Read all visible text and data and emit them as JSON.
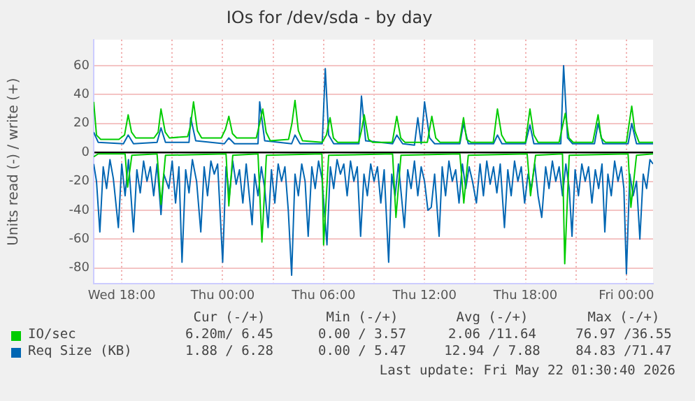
{
  "chart_data": {
    "type": "line",
    "title": "IOs for /dev/sda - by day",
    "ylabel": "Units read (-) / write (+)",
    "xlim": [
      "2026-05-20T16:20",
      "2026-05-22T01:35"
    ],
    "ylim": [
      -91,
      78
    ],
    "xticks": [
      {
        "value": "2026-05-20T18:00",
        "label": "Wed 18:00"
      },
      {
        "value": "2026-05-20T21:00",
        "label": null
      },
      {
        "value": "2026-05-21T00:00",
        "label": "Thu 00:00"
      },
      {
        "value": "2026-05-21T03:00",
        "label": null
      },
      {
        "value": "2026-05-21T06:00",
        "label": "Thu 06:00"
      },
      {
        "value": "2026-05-21T09:00",
        "label": null
      },
      {
        "value": "2026-05-21T12:00",
        "label": "Thu 12:00"
      },
      {
        "value": "2026-05-21T15:00",
        "label": null
      },
      {
        "value": "2026-05-21T18:00",
        "label": "Thu 18:00"
      },
      {
        "value": "2026-05-21T21:00",
        "label": null
      },
      {
        "value": "2026-05-22T00:00",
        "label": "Fri 00:00"
      }
    ],
    "yticks": [
      -80,
      -60,
      -40,
      -20,
      0,
      20,
      40,
      60
    ],
    "grid": true,
    "legend": "bottom",
    "marker": "none",
    "line_style": "solid",
    "series": [
      {
        "name": "IO/sec",
        "color": "#00cc00",
        "x": [
          "2026-05-20T16:20",
          "2026-05-20T16:30",
          "2026-05-20T16:45",
          "2026-05-20T17:50",
          "2026-05-20T18:10",
          "2026-05-20T18:23",
          "2026-05-20T18:35",
          "2026-05-20T18:50",
          "2026-05-20T19:55",
          "2026-05-20T20:10",
          "2026-05-20T20:20",
          "2026-05-20T20:35",
          "2026-05-20T20:50",
          "2026-05-20T21:55",
          "2026-05-20T22:05",
          "2026-05-20T22:16",
          "2026-05-20T22:30",
          "2026-05-20T22:45",
          "2026-05-20T23:55",
          "2026-05-21T00:10",
          "2026-05-21T00:22",
          "2026-05-21T00:35",
          "2026-05-21T00:50",
          "2026-05-21T02:00",
          "2026-05-21T02:12",
          "2026-05-21T02:23",
          "2026-05-21T02:35",
          "2026-05-21T02:50",
          "2026-05-21T03:55",
          "2026-05-21T04:07",
          "2026-05-21T04:18",
          "2026-05-21T04:30",
          "2026-05-21T04:45",
          "2026-05-21T05:55",
          "2026-05-21T06:10",
          "2026-05-21T06:23",
          "2026-05-21T06:35",
          "2026-05-21T06:50",
          "2026-05-21T08:05",
          "2026-05-21T08:15",
          "2026-05-21T08:25",
          "2026-05-21T08:40",
          "2026-05-21T08:55",
          "2026-05-21T10:05",
          "2026-05-21T10:21",
          "2026-05-21T10:35",
          "2026-05-21T10:50",
          "2026-05-21T12:10",
          "2026-05-21T12:26",
          "2026-05-21T12:40",
          "2026-05-21T12:55",
          "2026-05-21T14:05",
          "2026-05-21T14:19",
          "2026-05-21T14:30",
          "2026-05-21T14:45",
          "2026-05-21T16:05",
          "2026-05-21T16:20",
          "2026-05-21T16:35",
          "2026-05-21T16:50",
          "2026-05-21T18:00",
          "2026-05-21T18:16",
          "2026-05-21T18:30",
          "2026-05-21T18:45",
          "2026-05-21T20:00",
          "2026-05-21T20:22",
          "2026-05-21T20:35",
          "2026-05-21T20:50",
          "2026-05-21T22:00",
          "2026-05-21T22:19",
          "2026-05-21T22:30",
          "2026-05-21T22:45",
          "2026-05-22T00:00",
          "2026-05-22T00:19",
          "2026-05-22T00:30",
          "2026-05-22T00:45",
          "2026-05-22T01:35"
        ],
        "values": [
          35,
          12,
          9,
          9,
          12,
          26,
          14,
          10,
          10,
          14,
          30,
          14,
          10,
          11,
          18,
          35,
          15,
          10,
          10,
          16,
          25,
          13,
          10,
          10,
          20,
          30,
          14,
          8,
          9,
          20,
          36,
          15,
          8,
          7,
          12,
          24,
          10,
          7,
          7,
          15,
          26,
          9,
          7,
          7,
          25,
          10,
          7,
          7,
          25,
          10,
          7,
          7,
          24,
          9,
          7,
          7,
          30,
          12,
          7,
          7,
          30,
          12,
          7,
          7,
          27,
          10,
          7,
          7,
          26,
          10,
          7,
          7,
          32,
          15,
          7,
          7
        ]
      },
      {
        "name": "Req Size (KB)",
        "color": "#0066b3",
        "x": [
          "2026-05-20T16:20",
          "2026-05-20T16:36",
          "2026-05-20T18:06",
          "2026-05-20T18:23",
          "2026-05-20T18:42",
          "2026-05-20T20:06",
          "2026-05-20T20:20",
          "2026-05-20T20:36",
          "2026-05-20T22:00",
          "2026-05-20T22:06",
          "2026-05-20T22:24",
          "2026-05-21T00:06",
          "2026-05-21T00:22",
          "2026-05-21T00:42",
          "2026-05-21T02:06",
          "2026-05-21T02:12",
          "2026-05-21T02:30",
          "2026-05-21T04:06",
          "2026-05-21T04:18",
          "2026-05-21T04:36",
          "2026-05-21T05:55",
          "2026-05-21T06:06",
          "2026-05-21T06:18",
          "2026-05-21T06:36",
          "2026-05-21T08:06",
          "2026-05-21T08:15",
          "2026-05-21T08:30",
          "2026-05-21T10:06",
          "2026-05-21T10:21",
          "2026-05-21T10:42",
          "2026-05-21T11:24",
          "2026-05-21T11:36",
          "2026-05-21T11:48",
          "2026-05-21T12:00",
          "2026-05-21T12:18",
          "2026-05-21T12:36",
          "2026-05-21T14:06",
          "2026-05-21T14:19",
          "2026-05-21T14:36",
          "2026-05-21T16:06",
          "2026-05-21T16:20",
          "2026-05-21T16:36",
          "2026-05-21T18:00",
          "2026-05-21T18:16",
          "2026-05-21T18:30",
          "2026-05-21T20:06",
          "2026-05-21T20:16",
          "2026-05-21T20:30",
          "2026-05-21T20:48",
          "2026-05-21T22:06",
          "2026-05-21T22:19",
          "2026-05-21T22:36",
          "2026-05-22T00:06",
          "2026-05-22T00:19",
          "2026-05-22T00:36",
          "2026-05-22T01:35"
        ],
        "values": [
          14,
          7,
          6,
          12,
          6,
          7,
          17,
          7,
          7,
          24,
          8,
          6,
          10,
          6,
          6,
          35,
          8,
          6,
          12,
          6,
          6,
          58,
          12,
          6,
          6,
          39,
          8,
          6,
          12,
          6,
          5,
          24,
          6,
          35,
          10,
          6,
          6,
          20,
          6,
          6,
          12,
          6,
          6,
          19,
          6,
          6,
          60,
          10,
          6,
          6,
          20,
          6,
          6,
          20,
          6,
          6
        ]
      },
      {
        "color": "#00cc00",
        "x": [
          "2026-05-20T16:20",
          "2026-05-20T16:36",
          "2026-05-20T18:12",
          "2026-05-20T18:21",
          "2026-05-20T18:36",
          "2026-05-20T20:06",
          "2026-05-20T20:20",
          "2026-05-20T20:36",
          "2026-05-21T00:12",
          "2026-05-21T00:22",
          "2026-05-21T00:36",
          "2026-05-21T02:06",
          "2026-05-21T02:20",
          "2026-05-21T02:36",
          "2026-05-21T05:54",
          "2026-05-21T06:00",
          "2026-05-21T06:18",
          "2026-05-21T10:06",
          "2026-05-21T10:18",
          "2026-05-21T10:36",
          "2026-05-21T14:06",
          "2026-05-21T14:20",
          "2026-05-21T14:36",
          "2026-05-21T18:06",
          "2026-05-21T18:18",
          "2026-05-21T18:36",
          "2026-05-21T20:12",
          "2026-05-21T20:20",
          "2026-05-21T20:36",
          "2026-05-22T00:06",
          "2026-05-22T00:16",
          "2026-05-22T00:36",
          "2026-05-22T01:35"
        ],
        "values": [
          -3,
          -1,
          -1,
          -24,
          -2,
          -1,
          -36,
          -2,
          -1,
          -37,
          -2,
          -1,
          -62,
          -2,
          -1,
          -64,
          -2,
          -1,
          -45,
          -2,
          -1,
          -35,
          -2,
          -1,
          -30,
          -2,
          -1,
          -77,
          -2,
          -1,
          -38,
          -2,
          -1
        ]
      },
      {
        "color": "#0066b3",
        "x": [
          "2026-05-20T16:20",
          "2026-05-20T16:30",
          "2026-05-20T16:42",
          "2026-05-20T16:54",
          "2026-05-20T17:06",
          "2026-05-20T17:18",
          "2026-05-20T17:30",
          "2026-05-20T17:48",
          "2026-05-20T18:00",
          "2026-05-20T18:12",
          "2026-05-20T18:24",
          "2026-05-20T18:42",
          "2026-05-20T18:54",
          "2026-05-20T19:06",
          "2026-05-20T19:18",
          "2026-05-20T19:30",
          "2026-05-20T19:42",
          "2026-05-20T19:54",
          "2026-05-20T20:06",
          "2026-05-20T20:20",
          "2026-05-20T20:30",
          "2026-05-20T20:48",
          "2026-05-20T21:00",
          "2026-05-20T21:12",
          "2026-05-20T21:24",
          "2026-05-20T21:35",
          "2026-05-20T21:48",
          "2026-05-20T22:00",
          "2026-05-20T22:12",
          "2026-05-20T22:27",
          "2026-05-20T22:42",
          "2026-05-20T22:54",
          "2026-05-20T23:06",
          "2026-05-20T23:18",
          "2026-05-20T23:30",
          "2026-05-20T23:42",
          "2026-05-21T00:00",
          "2026-05-21T00:12",
          "2026-05-21T00:24",
          "2026-05-21T00:36",
          "2026-05-21T00:48",
          "2026-05-21T01:00",
          "2026-05-21T01:12",
          "2026-05-21T01:24",
          "2026-05-21T01:45",
          "2026-05-21T01:54",
          "2026-05-21T02:06",
          "2026-05-21T02:18",
          "2026-05-21T02:30",
          "2026-05-21T02:42",
          "2026-05-21T02:54",
          "2026-05-21T03:06",
          "2026-05-21T03:18",
          "2026-05-21T03:30",
          "2026-05-21T03:42",
          "2026-05-21T03:54",
          "2026-05-21T04:06",
          "2026-05-21T04:18",
          "2026-05-21T04:30",
          "2026-05-21T04:42",
          "2026-05-21T04:54",
          "2026-05-21T05:05",
          "2026-05-21T05:18",
          "2026-05-21T05:30",
          "2026-05-21T05:42",
          "2026-05-21T05:54",
          "2026-05-21T06:12",
          "2026-05-21T06:24",
          "2026-05-21T06:36",
          "2026-05-21T06:48",
          "2026-05-21T07:00",
          "2026-05-21T07:12",
          "2026-05-21T07:24",
          "2026-05-21T07:36",
          "2026-05-21T07:48",
          "2026-05-21T08:00",
          "2026-05-21T08:12",
          "2026-05-21T08:24",
          "2026-05-21T08:36",
          "2026-05-21T08:48",
          "2026-05-21T09:00",
          "2026-05-21T09:12",
          "2026-05-21T09:24",
          "2026-05-21T09:36",
          "2026-05-21T09:52",
          "2026-05-21T10:03",
          "2026-05-21T10:15",
          "2026-05-21T10:27",
          "2026-05-21T10:48",
          "2026-05-21T11:00",
          "2026-05-21T11:12",
          "2026-05-21T11:24",
          "2026-05-21T11:36",
          "2026-05-21T11:48",
          "2026-05-21T12:00",
          "2026-05-21T12:12",
          "2026-05-21T12:24",
          "2026-05-21T12:36",
          "2026-05-21T12:52",
          "2026-05-21T13:03",
          "2026-05-21T13:15",
          "2026-05-21T13:27",
          "2026-05-21T13:39",
          "2026-05-21T13:51",
          "2026-05-21T14:03",
          "2026-05-21T14:15",
          "2026-05-21T14:27",
          "2026-05-21T14:39",
          "2026-05-21T14:51",
          "2026-05-21T15:05",
          "2026-05-21T15:18",
          "2026-05-21T15:30",
          "2026-05-21T15:42",
          "2026-05-21T15:54",
          "2026-05-21T16:06",
          "2026-05-21T16:18",
          "2026-05-21T16:30",
          "2026-05-21T16:45",
          "2026-05-21T16:57",
          "2026-05-21T17:09",
          "2026-05-21T17:21",
          "2026-05-21T17:33",
          "2026-05-21T17:45",
          "2026-05-21T17:57",
          "2026-05-21T18:09",
          "2026-05-21T18:21",
          "2026-05-21T18:33",
          "2026-05-21T18:45",
          "2026-05-21T18:58",
          "2026-05-21T19:12",
          "2026-05-21T19:24",
          "2026-05-21T19:36",
          "2026-05-21T19:48",
          "2026-05-21T20:00",
          "2026-05-21T20:12",
          "2026-05-21T20:24",
          "2026-05-21T20:36",
          "2026-05-21T20:46",
          "2026-05-21T20:57",
          "2026-05-21T21:09",
          "2026-05-21T21:21",
          "2026-05-21T21:33",
          "2026-05-21T21:45",
          "2026-05-21T21:57",
          "2026-05-21T22:09",
          "2026-05-21T22:21",
          "2026-05-21T22:33",
          "2026-05-21T22:43",
          "2026-05-21T22:54",
          "2026-05-21T23:06",
          "2026-05-21T23:18",
          "2026-05-21T23:30",
          "2026-05-21T23:42",
          "2026-05-21T23:51",
          "2026-05-22T00:00",
          "2026-05-22T00:12",
          "2026-05-22T00:24",
          "2026-05-22T00:36",
          "2026-05-22T00:48",
          "2026-05-22T01:00",
          "2026-05-22T01:12",
          "2026-05-22T01:24",
          "2026-05-22T01:35"
        ],
        "values": [
          -8,
          -20,
          -55,
          -10,
          -25,
          -5,
          -18,
          -52,
          -8,
          -30,
          -5,
          -55,
          -12,
          -28,
          -6,
          -20,
          -10,
          -30,
          -8,
          -43,
          -15,
          -25,
          -6,
          -35,
          -10,
          -76,
          -12,
          -28,
          -5,
          -20,
          -55,
          -10,
          -30,
          -6,
          -15,
          -8,
          -76,
          -10,
          -30,
          -6,
          -22,
          -12,
          -35,
          -8,
          -50,
          -15,
          -30,
          -10,
          -25,
          -52,
          -12,
          -35,
          -8,
          -20,
          -10,
          -40,
          -85,
          -15,
          -30,
          -8,
          -20,
          -58,
          -10,
          -25,
          -6,
          -18,
          -64,
          -10,
          -25,
          -5,
          -15,
          -8,
          -30,
          -6,
          -20,
          -10,
          -58,
          -15,
          -30,
          -8,
          -20,
          -10,
          -35,
          -12,
          -76,
          -15,
          -30,
          -8,
          -52,
          -12,
          -25,
          -6,
          -30,
          -10,
          -20,
          -40,
          -38,
          -15,
          -58,
          -10,
          -30,
          -6,
          -20,
          -12,
          -35,
          -8,
          -25,
          -10,
          -20,
          -35,
          -8,
          -30,
          -6,
          -22,
          -10,
          -28,
          -8,
          -52,
          -12,
          -30,
          -6,
          -20,
          -10,
          -35,
          -15,
          -25,
          -8,
          -30,
          -45,
          -10,
          -25,
          -6,
          -20,
          -10,
          -30,
          -8,
          -25,
          -58,
          -12,
          -30,
          -8,
          -20,
          -10,
          -35,
          -12,
          -25,
          -8,
          -55,
          -15,
          -30,
          -6,
          -20,
          -10,
          -25,
          -84,
          -15,
          -30,
          -20,
          -60,
          -15,
          -25,
          -5,
          -8
        ]
      }
    ],
    "annotations": [
      "Cur (-/+)",
      "Min (-/+)",
      "Avg (-/+)",
      "Max (-/+)",
      "6.20m/ 6.45",
      "0.00 / 3.57",
      "2.06 /11.64",
      "76.97 /36.55",
      "1.88 / 6.28",
      "0.00 / 5.47",
      "12.94 / 7.88",
      "84.83 /71.47",
      "Last update: Fri May 22 01:30:40 2026"
    ]
  }
}
